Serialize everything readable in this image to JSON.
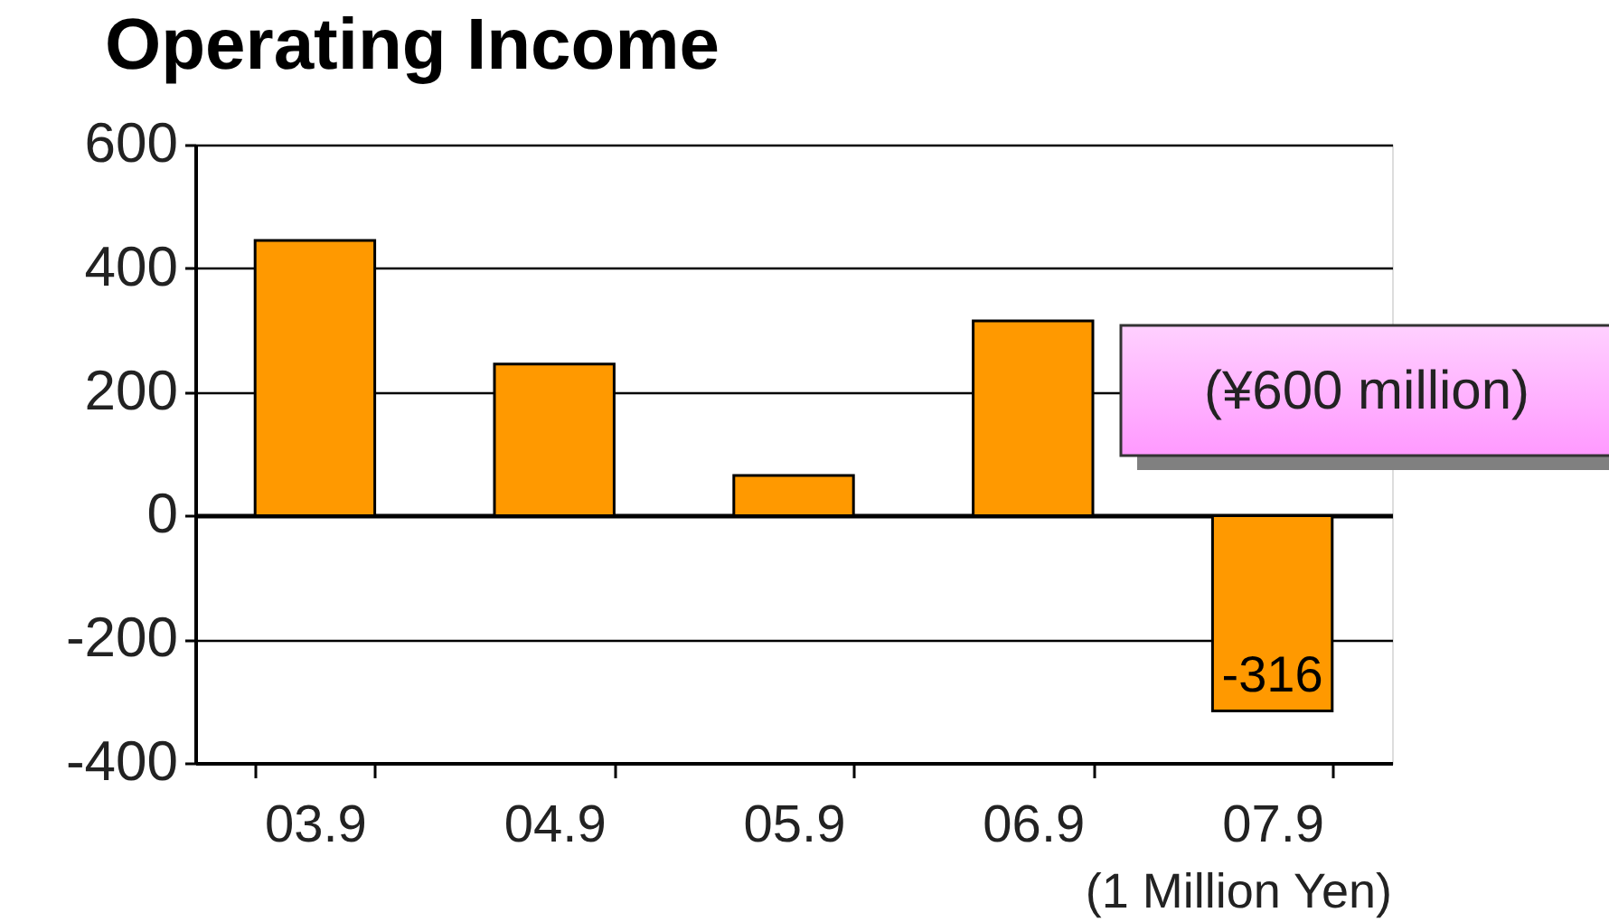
{
  "chart_data": {
    "type": "bar",
    "title": "Operating Income",
    "categories": [
      "03.9",
      "04.9",
      "05.9",
      "06.9",
      "07.9"
    ],
    "values": [
      445,
      245,
      65,
      315,
      -316
    ],
    "value_labels": [
      null,
      null,
      null,
      null,
      "-316"
    ],
    "color": "#ff9900",
    "ylim": [
      -400,
      600
    ],
    "yticks": [
      -400,
      -200,
      0,
      200,
      400,
      600
    ],
    "grid": "y",
    "annotations": [
      "(¥600 million)",
      "(1 Million Yen)"
    ]
  }
}
